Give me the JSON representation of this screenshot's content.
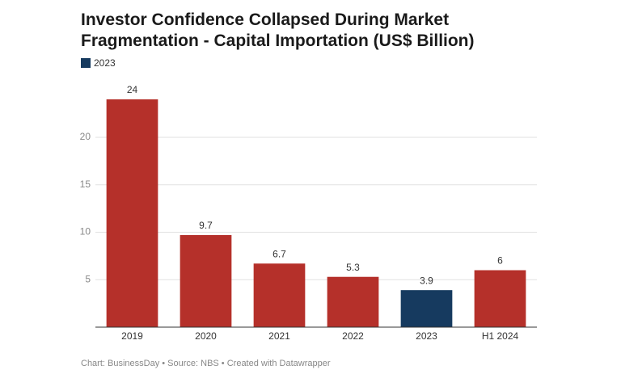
{
  "chart_data": {
    "type": "bar",
    "title": "Investor Confidence Collapsed During Market Fragmentation - Capital Importation (US$ Billion)",
    "legend": [
      {
        "name": "2023",
        "color": "#163a5f"
      }
    ],
    "categories": [
      "2019",
      "2020",
      "2021",
      "2022",
      "2023",
      "H1 2024"
    ],
    "values": [
      24,
      9.7,
      6.7,
      5.3,
      3.9,
      6
    ],
    "colors": [
      "#b5302a",
      "#b5302a",
      "#b5302a",
      "#b5302a",
      "#163a5f",
      "#b5302a"
    ],
    "ylim": [
      0,
      24
    ],
    "yticks": [
      5,
      10,
      15,
      20
    ],
    "grid": true,
    "footer": "Chart: BusinessDay • Source: NBS • Created with Datawrapper"
  }
}
